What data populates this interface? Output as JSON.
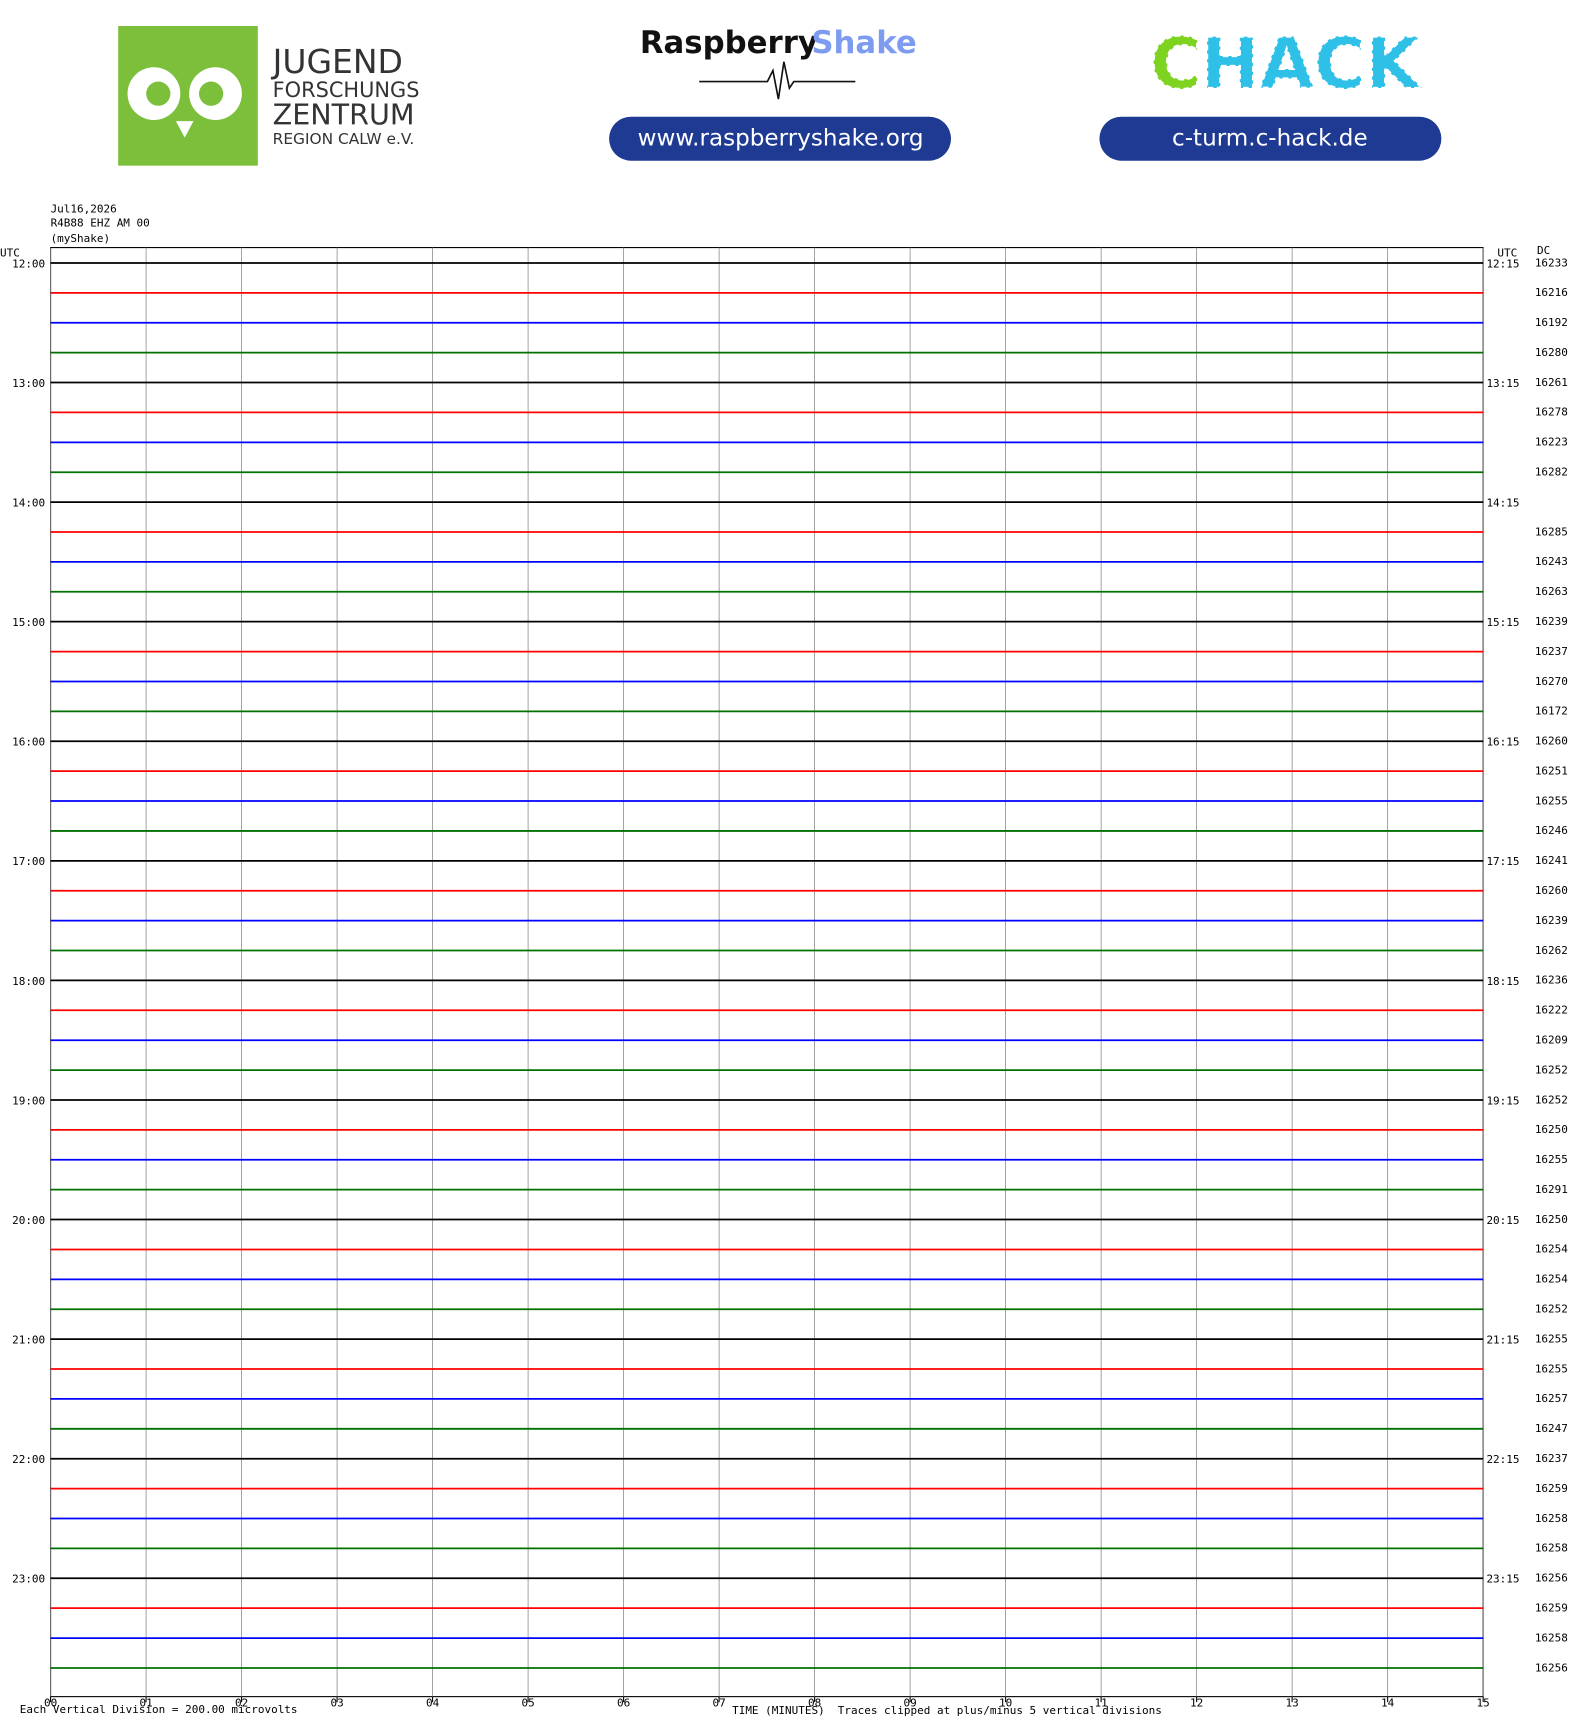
{
  "header": {
    "jfz": {
      "line1": "JUGEND",
      "line2": "FORSCHUNGS",
      "line3": "ZENTRUM",
      "line4": "REGION CALW e.V."
    },
    "rs": {
      "word1": "Raspberry",
      "word2": "Shake",
      "url": "www.raspberryshake.org"
    },
    "chack": {
      "c": "C",
      "hack": "HACK",
      "url": "c-turm.c-hack.de"
    }
  },
  "chart_data": {
    "type": "helicorder",
    "date": "Jul16,2026",
    "station": "R4B88 EHZ AM 00",
    "source": "(myShake)",
    "utc_left": "UTC",
    "utc_right": "UTC",
    "dc_title": "DC",
    "left_labels": [
      "12:00",
      "13:00",
      "14:00",
      "15:00",
      "16:00",
      "17:00",
      "18:00",
      "19:00",
      "20:00",
      "21:00",
      "22:00",
      "23:00"
    ],
    "right_labels": [
      "12:15",
      "13:15",
      "14:15",
      "15:15",
      "16:15",
      "17:15",
      "18:15",
      "19:15",
      "20:15",
      "21:15",
      "22:15",
      "23:15"
    ],
    "dc": [
      16233,
      16216,
      16192,
      16280,
      16261,
      16278,
      16223,
      16282,
      null,
      16285,
      16243,
      16263,
      16239,
      16237,
      16270,
      16172,
      16260,
      16251,
      16255,
      16246,
      16241,
      16260,
      16239,
      16262,
      16236,
      16222,
      16209,
      16252,
      16252,
      16250,
      16255,
      16291,
      16250,
      16254,
      16254,
      16252,
      16255,
      16255,
      16257,
      16247,
      16237,
      16259,
      16258,
      16258,
      16256,
      16259,
      16258,
      16256
    ],
    "colors": [
      "#000000",
      "#ff0000",
      "#0000ff",
      "#007000"
    ],
    "xlim": [
      0,
      15
    ],
    "xticks": [
      {
        "value": 0,
        "label": "00"
      },
      {
        "value": 1,
        "label": "01"
      },
      {
        "value": 2,
        "label": "02"
      },
      {
        "value": 3,
        "label": "03"
      },
      {
        "value": 4,
        "label": "04"
      },
      {
        "value": 5,
        "label": "05"
      },
      {
        "value": 6,
        "label": "06"
      },
      {
        "value": 7,
        "label": "07"
      },
      {
        "value": 8,
        "label": "08"
      },
      {
        "value": 9,
        "label": "09"
      },
      {
        "value": 10,
        "label": "10"
      },
      {
        "value": 11,
        "label": "11"
      },
      {
        "value": 12,
        "label": "12"
      },
      {
        "value": 13,
        "label": "13"
      },
      {
        "value": 14,
        "label": "14"
      },
      {
        "value": 15,
        "label": "15"
      }
    ],
    "xlabel": "TIME (MINUTES)",
    "scale_note": "Each Vertical Division =  200.00 microvolts",
    "clip_note": "Traces clipped at plus/minus 5 vertical divisions"
  }
}
